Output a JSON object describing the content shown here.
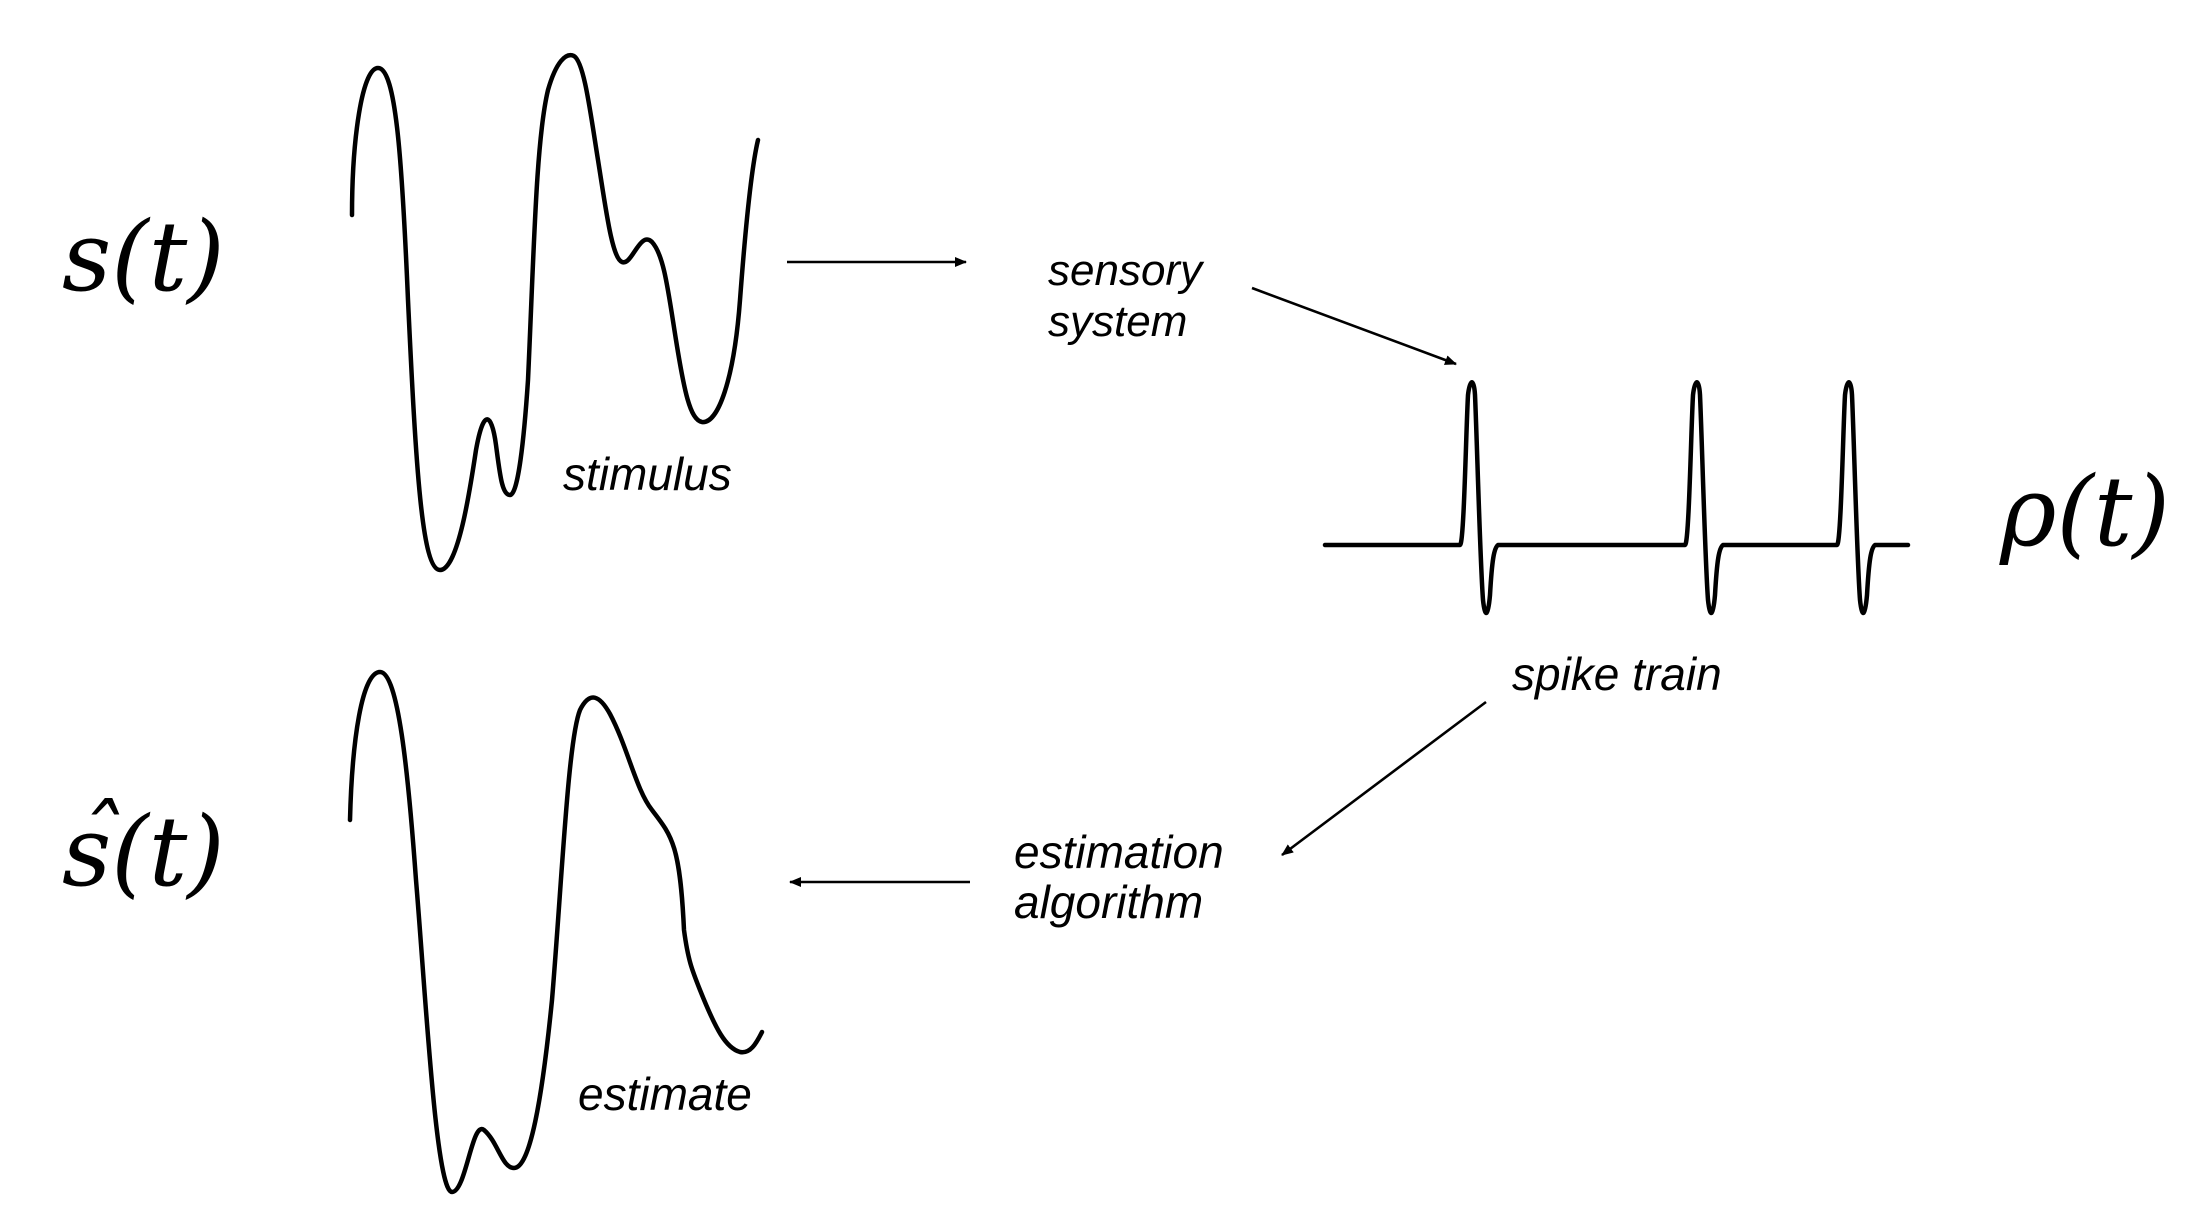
{
  "symbols": {
    "stimulus_symbol": "s(t)",
    "estimate_symbol_hat": "ˆ",
    "estimate_symbol": "s(t)",
    "response_symbol": "ρ(t)"
  },
  "labels": {
    "stimulus": "stimulus",
    "sensory_line1": "sensory",
    "sensory_line2": "system",
    "spike_train": "spike train",
    "estimation_line1": "estimation",
    "estimation_line2": "algorithm",
    "estimate": "estimate"
  },
  "colors": {
    "ink": "#000000",
    "background": "#ffffff"
  }
}
